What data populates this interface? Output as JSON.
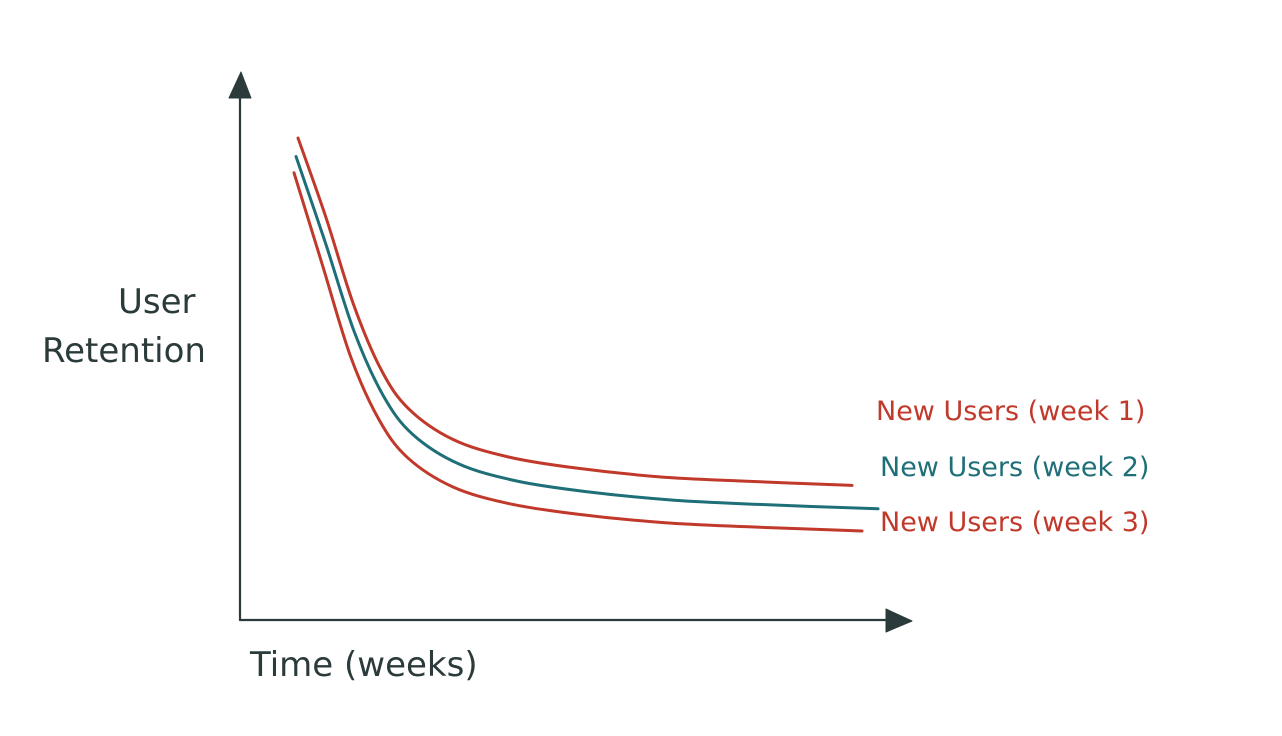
{
  "chart_data": {
    "type": "line",
    "title": "",
    "xlabel": "Time (weeks)",
    "ylabel_lines": [
      "User",
      "Retention"
    ],
    "grid": false,
    "legend": "inline-right",
    "series": [
      {
        "name": "New Users (week 1)",
        "color": "#c0392b",
        "shape": [
          [
            0.0,
            1.0
          ],
          [
            0.05,
            0.82
          ],
          [
            0.1,
            0.62
          ],
          [
            0.15,
            0.47
          ],
          [
            0.2,
            0.38
          ],
          [
            0.28,
            0.31
          ],
          [
            0.38,
            0.27
          ],
          [
            0.5,
            0.245
          ],
          [
            0.65,
            0.225
          ],
          [
            0.8,
            0.215
          ],
          [
            1.0,
            0.205
          ]
        ]
      },
      {
        "name": "New Users (week 2)",
        "color": "#1f6f78",
        "shape": [
          [
            0.0,
            0.98
          ],
          [
            0.05,
            0.78
          ],
          [
            0.1,
            0.57
          ],
          [
            0.15,
            0.42
          ],
          [
            0.2,
            0.33
          ],
          [
            0.28,
            0.26
          ],
          [
            0.38,
            0.22
          ],
          [
            0.5,
            0.195
          ],
          [
            0.65,
            0.175
          ],
          [
            0.8,
            0.165
          ],
          [
            1.0,
            0.155
          ]
        ]
      },
      {
        "name": "New Users (week 3)",
        "color": "#c0392b",
        "shape": [
          [
            0.0,
            0.96
          ],
          [
            0.05,
            0.74
          ],
          [
            0.1,
            0.52
          ],
          [
            0.15,
            0.37
          ],
          [
            0.2,
            0.28
          ],
          [
            0.28,
            0.21
          ],
          [
            0.38,
            0.17
          ],
          [
            0.5,
            0.145
          ],
          [
            0.65,
            0.125
          ],
          [
            0.8,
            0.115
          ],
          [
            1.0,
            0.105
          ]
        ]
      }
    ],
    "colors": {
      "axis": "#2b3a3a",
      "background": "#ffffff"
    }
  }
}
